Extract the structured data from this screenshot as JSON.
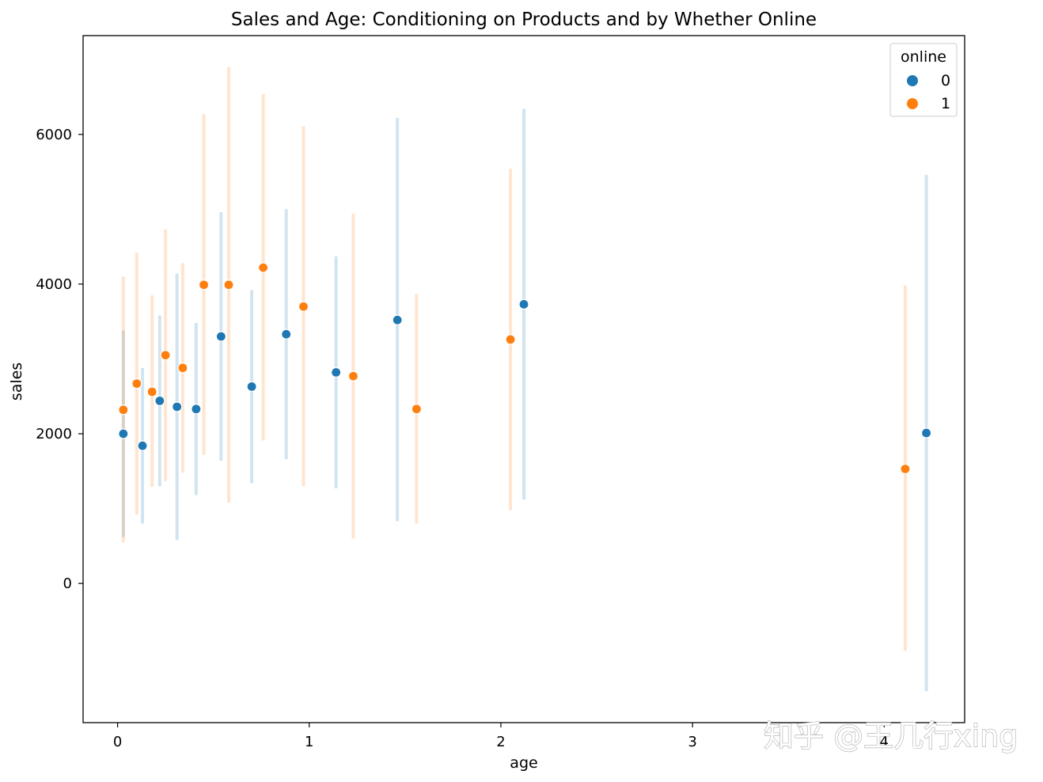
{
  "chart_data": {
    "type": "scatter",
    "title": "Sales and Age: Conditioning on Products and by Whether Online",
    "xlabel": "age",
    "ylabel": "sales",
    "xlim": [
      -0.18,
      4.42
    ],
    "ylim": [
      -1860,
      7320
    ],
    "xticks": [
      0,
      1,
      2,
      3,
      4
    ],
    "yticks": [
      0,
      2000,
      4000,
      6000
    ],
    "grid": false,
    "legend": {
      "title": "online",
      "placement": "top-right"
    },
    "series": [
      {
        "name": "0",
        "color": "#1f77b4",
        "points": [
          {
            "x": 0.03,
            "y": 2000,
            "low": 620,
            "high": 3380
          },
          {
            "x": 0.13,
            "y": 1840,
            "low": 800,
            "high": 2880
          },
          {
            "x": 0.22,
            "y": 2440,
            "low": 1300,
            "high": 3580
          },
          {
            "x": 0.31,
            "y": 2360,
            "low": 580,
            "high": 4140
          },
          {
            "x": 0.41,
            "y": 2330,
            "low": 1180,
            "high": 3480
          },
          {
            "x": 0.54,
            "y": 3300,
            "low": 1640,
            "high": 4960
          },
          {
            "x": 0.7,
            "y": 2630,
            "low": 1340,
            "high": 3920
          },
          {
            "x": 0.88,
            "y": 3330,
            "low": 1660,
            "high": 5000
          },
          {
            "x": 1.14,
            "y": 2820,
            "low": 1270,
            "high": 4370
          },
          {
            "x": 1.46,
            "y": 3520,
            "low": 830,
            "high": 6220
          },
          {
            "x": 2.12,
            "y": 3730,
            "low": 1120,
            "high": 6340
          },
          {
            "x": 4.22,
            "y": 2010,
            "low": -1440,
            "high": 5460
          }
        ]
      },
      {
        "name": "1",
        "color": "#ff7f0e",
        "points": [
          {
            "x": 0.03,
            "y": 2320,
            "low": 550,
            "high": 4100
          },
          {
            "x": 0.1,
            "y": 2670,
            "low": 920,
            "high": 4420
          },
          {
            "x": 0.18,
            "y": 2560,
            "low": 1290,
            "high": 3850
          },
          {
            "x": 0.25,
            "y": 3050,
            "low": 1370,
            "high": 4730
          },
          {
            "x": 0.34,
            "y": 2880,
            "low": 1480,
            "high": 4280
          },
          {
            "x": 0.45,
            "y": 3990,
            "low": 1720,
            "high": 6270
          },
          {
            "x": 0.58,
            "y": 3990,
            "low": 1080,
            "high": 6900
          },
          {
            "x": 0.76,
            "y": 4220,
            "low": 1910,
            "high": 6540
          },
          {
            "x": 0.97,
            "y": 3700,
            "low": 1300,
            "high": 6110
          },
          {
            "x": 1.23,
            "y": 2770,
            "low": 600,
            "high": 4940
          },
          {
            "x": 1.56,
            "y": 2330,
            "low": 800,
            "high": 3870
          },
          {
            "x": 2.05,
            "y": 3260,
            "low": 980,
            "high": 5540
          },
          {
            "x": 4.11,
            "y": 1530,
            "low": -900,
            "high": 3980
          }
        ]
      }
    ]
  },
  "watermark": "知乎 @王几行xing"
}
